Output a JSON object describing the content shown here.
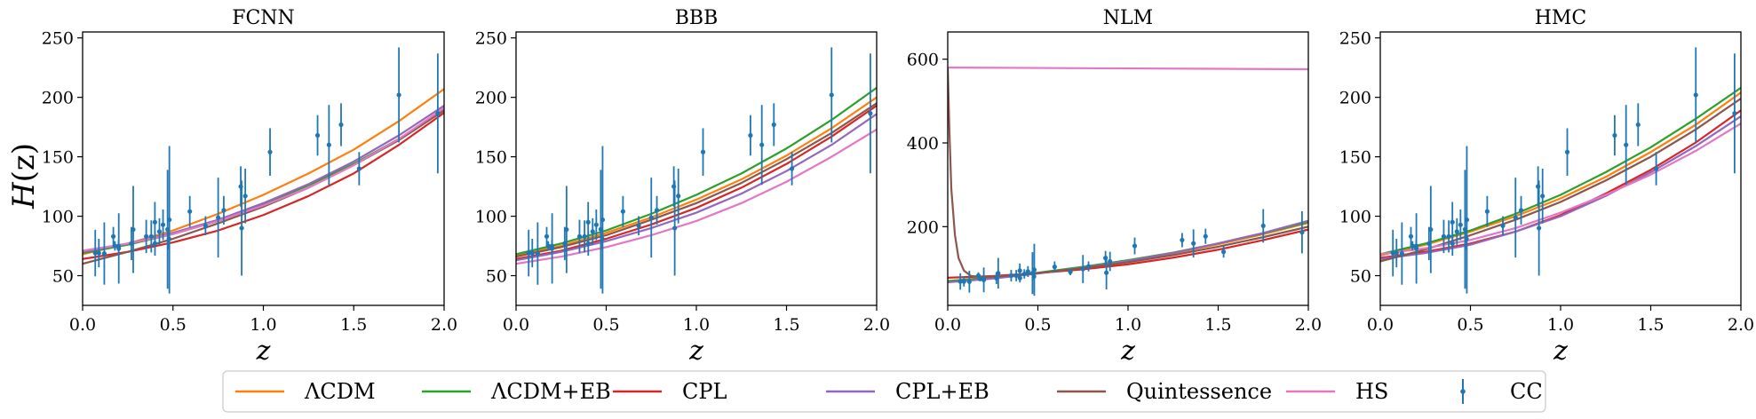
{
  "figure": {
    "ylabel_main": "H",
    "ylabel_arg": "(z)",
    "xlabel": "z",
    "legend": [
      {
        "label": "ΛCDM",
        "color": "#ff7f0e",
        "kind": "line"
      },
      {
        "label": "ΛCDM+EB",
        "color": "#2ca02c",
        "kind": "line"
      },
      {
        "label": "CPL",
        "color": "#d62728",
        "kind": "line"
      },
      {
        "label": "CPL+EB",
        "color": "#9467bd",
        "kind": "line"
      },
      {
        "label": "Quintessence",
        "color": "#8c564b",
        "kind": "line"
      },
      {
        "label": "HS",
        "color": "#e377c2",
        "kind": "line"
      },
      {
        "label": "CC",
        "color": "#1f77b4",
        "kind": "errorbar"
      }
    ]
  },
  "chart_data": [
    {
      "type": "line",
      "title": "FCNN",
      "xlabel": "z",
      "ylabel": "H(z)",
      "xlim": [
        0.0,
        2.0
      ],
      "ylim": [
        25,
        255
      ],
      "xticks": [
        "0.0",
        "0.5",
        "1.0",
        "1.5",
        "2.0"
      ],
      "yticks": [
        "50",
        "100",
        "150",
        "200",
        "250"
      ],
      "series": [
        {
          "name": "ΛCDM",
          "color": "#ff7f0e",
          "x": [
            0,
            0.25,
            0.5,
            0.75,
            1.0,
            1.25,
            1.5,
            1.75,
            2.0
          ],
          "y": [
            68,
            77,
            88,
            102,
            118,
            136,
            156,
            180,
            207
          ]
        },
        {
          "name": "ΛCDM+EB",
          "color": "#2ca02c",
          "x": [
            0,
            0.25,
            0.5,
            0.75,
            1.0,
            1.25,
            1.5,
            1.75,
            2.0
          ],
          "y": [
            69,
            76,
            85,
            96,
            110,
            126,
            144,
            165,
            190
          ]
        },
        {
          "name": "CPL",
          "color": "#d62728",
          "x": [
            0,
            0.25,
            0.5,
            0.75,
            1.0,
            1.25,
            1.5,
            1.75,
            2.0
          ],
          "y": [
            64,
            70,
            78,
            88,
            101,
            117,
            136,
            160,
            187
          ]
        },
        {
          "name": "CPL+EB",
          "color": "#9467bd",
          "x": [
            0,
            0.25,
            0.5,
            0.75,
            1.0,
            1.25,
            1.5,
            1.75,
            2.0
          ],
          "y": [
            70,
            77,
            86,
            97,
            111,
            127,
            146,
            168,
            193
          ]
        },
        {
          "name": "Quintessence",
          "color": "#8c564b",
          "x": [
            0,
            0.25,
            0.5,
            0.75,
            1.0,
            1.25,
            1.5,
            1.75,
            2.0
          ],
          "y": [
            60,
            70,
            81,
            94,
            108,
            124,
            143,
            164,
            189
          ]
        },
        {
          "name": "HS",
          "color": "#e377c2",
          "x": [
            0,
            0.25,
            0.5,
            0.75,
            1.0,
            1.25,
            1.5,
            1.75,
            2.0
          ],
          "y": [
            71,
            77,
            85,
            96,
            109,
            124,
            143,
            165,
            191
          ]
        }
      ]
    },
    {
      "type": "line",
      "title": "BBB",
      "xlabel": "z",
      "ylabel": "",
      "xlim": [
        0.0,
        2.0
      ],
      "ylim": [
        25,
        255
      ],
      "xticks": [
        "0.0",
        "0.5",
        "1.0",
        "1.5",
        "2.0"
      ],
      "yticks": [
        "50",
        "100",
        "150",
        "200",
        "250"
      ],
      "series": [
        {
          "name": "ΛCDM",
          "color": "#ff7f0e",
          "x": [
            0,
            0.25,
            0.5,
            0.75,
            1.0,
            1.25,
            1.5,
            1.75,
            2.0
          ],
          "y": [
            67,
            75,
            86,
            99,
            114,
            131,
            151,
            174,
            200
          ]
        },
        {
          "name": "ΛCDM+EB",
          "color": "#2ca02c",
          "x": [
            0,
            0.25,
            0.5,
            0.75,
            1.0,
            1.25,
            1.5,
            1.75,
            2.0
          ],
          "y": [
            68,
            77,
            88,
            102,
            118,
            136,
            157,
            181,
            208
          ]
        },
        {
          "name": "CPL",
          "color": "#d62728",
          "x": [
            0,
            0.25,
            0.5,
            0.75,
            1.0,
            1.25,
            1.5,
            1.75,
            2.0
          ],
          "y": [
            64,
            71,
            81,
            93,
            107,
            124,
            144,
            167,
            193
          ]
        },
        {
          "name": "CPL+EB",
          "color": "#9467bd",
          "x": [
            0,
            0.25,
            0.5,
            0.75,
            1.0,
            1.25,
            1.5,
            1.75,
            2.0
          ],
          "y": [
            63,
            70,
            79,
            90,
            103,
            119,
            138,
            160,
            186
          ]
        },
        {
          "name": "Quintessence",
          "color": "#8c564b",
          "x": [
            0,
            0.25,
            0.5,
            0.75,
            1.0,
            1.25,
            1.5,
            1.75,
            2.0
          ],
          "y": [
            66,
            74,
            84,
            97,
            111,
            128,
            148,
            170,
            195
          ]
        },
        {
          "name": "HS",
          "color": "#e377c2",
          "x": [
            0,
            0.25,
            0.5,
            0.75,
            1.0,
            1.25,
            1.5,
            1.75,
            2.0
          ],
          "y": [
            60,
            66,
            74,
            84,
            96,
            111,
            129,
            150,
            173
          ]
        }
      ]
    },
    {
      "type": "line",
      "title": "NLM",
      "xlabel": "z",
      "ylabel": "",
      "xlim": [
        0.0,
        2.0
      ],
      "ylim": [
        12,
        665
      ],
      "xticks": [
        "0.0",
        "0.5",
        "1.0",
        "1.5",
        "2.0"
      ],
      "yticks": [
        "200",
        "400",
        "600"
      ],
      "series": [
        {
          "name": "ΛCDM",
          "color": "#ff7f0e",
          "x": [
            0,
            0.25,
            0.5,
            0.75,
            1.0,
            1.25,
            1.5,
            1.75,
            2.0
          ],
          "y": [
            69,
            78,
            89,
            102,
            118,
            136,
            158,
            182,
            209
          ]
        },
        {
          "name": "ΛCDM+EB",
          "color": "#2ca02c",
          "x": [
            0,
            0.25,
            0.5,
            0.75,
            1.0,
            1.25,
            1.5,
            1.75,
            2.0
          ],
          "y": [
            70,
            79,
            90,
            104,
            120,
            138,
            160,
            184,
            211
          ]
        },
        {
          "name": "CPL",
          "color": "#d62728",
          "x": [
            0,
            0.25,
            0.5,
            0.75,
            1.0,
            1.25,
            1.5,
            1.75,
            2.0
          ],
          "y": [
            78,
            82,
            89,
            98,
            110,
            126,
            145,
            168,
            193
          ]
        },
        {
          "name": "CPL+EB",
          "color": "#9467bd",
          "x": [
            0,
            0.25,
            0.5,
            0.75,
            1.0,
            1.25,
            1.5,
            1.75,
            2.0
          ],
          "y": [
            67,
            76,
            88,
            102,
            118,
            137,
            160,
            185,
            214
          ]
        },
        {
          "name": "Quintessence",
          "color": "#8c564b",
          "x": [
            0,
            0.01,
            0.02,
            0.04,
            0.06,
            0.09,
            0.13,
            0.2,
            0.3,
            0.5,
            0.75,
            1.0,
            1.25,
            1.5,
            1.75,
            2.0
          ],
          "y": [
            580,
            420,
            290,
            180,
            125,
            95,
            82,
            80,
            82,
            89,
            101,
            115,
            132,
            152,
            175,
            200
          ]
        },
        {
          "name": "HS",
          "color": "#e377c2",
          "x": [
            0,
            0.5,
            1.0,
            1.5,
            2.0
          ],
          "y": [
            580,
            579,
            578,
            577,
            576
          ]
        }
      ]
    },
    {
      "type": "line",
      "title": "HMC",
      "xlabel": "z",
      "ylabel": "",
      "xlim": [
        0.0,
        2.0
      ],
      "ylim": [
        25,
        255
      ],
      "xticks": [
        "0.0",
        "0.5",
        "1.0",
        "1.5",
        "2.0"
      ],
      "yticks": [
        "50",
        "100",
        "150",
        "200",
        "250"
      ],
      "series": [
        {
          "name": "ΛCDM",
          "color": "#ff7f0e",
          "x": [
            0,
            0.25,
            0.5,
            0.75,
            1.0,
            1.25,
            1.5,
            1.75,
            2.0
          ],
          "y": [
            67,
            76,
            87,
            100,
            115,
            133,
            154,
            177,
            204
          ]
        },
        {
          "name": "ΛCDM+EB",
          "color": "#2ca02c",
          "x": [
            0,
            0.25,
            0.5,
            0.75,
            1.0,
            1.25,
            1.5,
            1.75,
            2.0
          ],
          "y": [
            68,
            77,
            88,
            102,
            118,
            137,
            158,
            182,
            208
          ]
        },
        {
          "name": "CPL",
          "color": "#d62728",
          "x": [
            0,
            0.25,
            0.5,
            0.75,
            1.0,
            1.25,
            1.5,
            1.75,
            2.0
          ],
          "y": [
            65,
            70,
            77,
            87,
            101,
            119,
            139,
            162,
            189
          ]
        },
        {
          "name": "CPL+EB",
          "color": "#9467bd",
          "x": [
            0,
            0.25,
            0.5,
            0.75,
            1.0,
            1.25,
            1.5,
            1.75,
            2.0
          ],
          "y": [
            64,
            69,
            76,
            87,
            100,
            117,
            137,
            159,
            184
          ]
        },
        {
          "name": "Quintessence",
          "color": "#8c564b",
          "x": [
            0,
            0.25,
            0.5,
            0.75,
            1.0,
            1.25,
            1.5,
            1.75,
            2.0
          ],
          "y": [
            62,
            72,
            84,
            97,
            112,
            130,
            150,
            173,
            199
          ]
        },
        {
          "name": "HS",
          "color": "#e377c2",
          "x": [
            0,
            0.25,
            0.5,
            0.75,
            1.0,
            1.25,
            1.5,
            1.75,
            2.0
          ],
          "y": [
            68,
            73,
            80,
            90,
            103,
            118,
            135,
            155,
            178
          ]
        }
      ]
    }
  ],
  "cc_data": {
    "name": "CC",
    "color": "#1f77b4",
    "z": [
      0.07,
      0.09,
      0.12,
      0.17,
      0.179,
      0.199,
      0.2,
      0.27,
      0.28,
      0.352,
      0.38,
      0.4,
      0.4004,
      0.425,
      0.445,
      0.47,
      0.4783,
      0.48,
      0.593,
      0.68,
      0.75,
      0.781,
      0.875,
      0.88,
      0.9,
      1.037,
      1.3,
      1.363,
      1.43,
      1.53,
      1.75,
      1.965
    ],
    "H": [
      69,
      69,
      68.6,
      83,
      75,
      75,
      72.9,
      77,
      88.8,
      83,
      83,
      95,
      77,
      87.1,
      92.8,
      89,
      80.9,
      97,
      104,
      92,
      98.8,
      105,
      125,
      90,
      117,
      154,
      168,
      160,
      177,
      140,
      202,
      186.5
    ],
    "err": [
      19.6,
      12,
      26.2,
      8,
      4,
      5,
      29.6,
      14,
      36.6,
      14,
      13.5,
      17,
      10.2,
      11.2,
      12.9,
      50,
      9,
      62,
      13,
      8,
      33.6,
      12,
      17,
      40,
      23,
      20,
      17,
      33.6,
      18,
      14,
      40,
      50.4
    ]
  }
}
